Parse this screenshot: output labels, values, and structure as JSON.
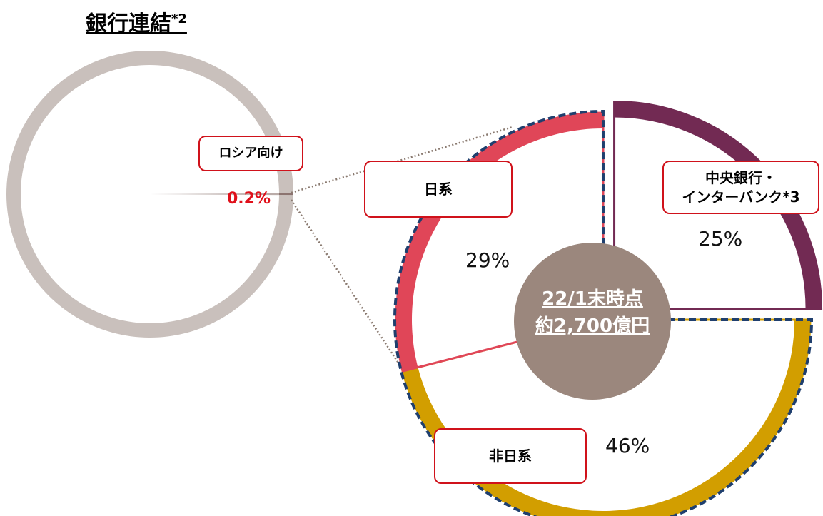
{
  "chart_data": [
    {
      "type": "donut",
      "title": "銀行連結",
      "title_note": "*2",
      "categories": [
        "ロシア向け",
        null
      ],
      "values": [
        0.2,
        99.8
      ],
      "value_labels": [
        "0.2%",
        null
      ],
      "colors": [
        "#8c7470",
        "#c9c0bc"
      ]
    },
    {
      "type": "donut",
      "categories": [
        "中央銀行・\nインターバンク*3",
        "非日系",
        "日系"
      ],
      "values": [
        25,
        46,
        29
      ],
      "value_labels": [
        "25%",
        "46%",
        "29%"
      ],
      "colors": [
        "#722a53",
        "#d29e00",
        "#e04658"
      ],
      "center_label": [
        "22/1末時点",
        "約2,700億円"
      ]
    }
  ]
}
